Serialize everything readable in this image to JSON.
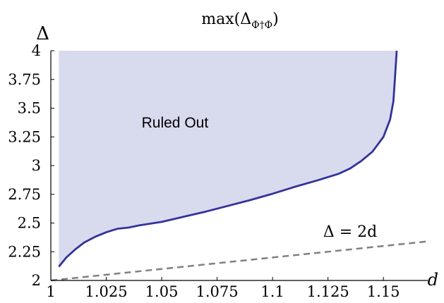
{
  "chart_data": {
    "type": "area",
    "title": "max(Δ",
    "title_sub": "Φ†Φ",
    "title_close": ")",
    "xlabel": "d",
    "ylabel": "Δ",
    "xlim": [
      1.0,
      1.17
    ],
    "ylim": [
      2.0,
      4.0
    ],
    "x_ticks": [
      1.0,
      1.025,
      1.05,
      1.075,
      1.1,
      1.125,
      1.15
    ],
    "x_tick_labels": [
      "1",
      "1.025",
      "1.05",
      "1.075",
      "1.1",
      "1.125",
      "1.15"
    ],
    "y_ticks": [
      2.0,
      2.25,
      2.5,
      2.75,
      3.0,
      3.25,
      3.5,
      3.75,
      4.0
    ],
    "y_tick_labels": [
      "2",
      "2.25",
      "2.5",
      "2.75",
      "3",
      "3.25",
      "3.5",
      "3.75",
      "4"
    ],
    "grid": false,
    "series": [
      {
        "points": [
          [
            1.0036,
            2.12
          ],
          [
            1.007,
            2.2
          ],
          [
            1.011,
            2.27
          ],
          [
            1.015,
            2.33
          ],
          [
            1.02,
            2.38
          ],
          [
            1.025,
            2.42
          ],
          [
            1.03,
            2.45
          ],
          [
            1.035,
            2.46
          ],
          [
            1.04,
            2.48
          ],
          [
            1.05,
            2.51
          ],
          [
            1.06,
            2.555
          ],
          [
            1.07,
            2.6
          ],
          [
            1.08,
            2.65
          ],
          [
            1.09,
            2.7
          ],
          [
            1.1,
            2.755
          ],
          [
            1.11,
            2.815
          ],
          [
            1.12,
            2.87
          ],
          [
            1.13,
            2.93
          ],
          [
            1.135,
            2.975
          ],
          [
            1.14,
            3.04
          ],
          [
            1.145,
            3.12
          ],
          [
            1.15,
            3.25
          ],
          [
            1.153,
            3.4
          ],
          [
            1.1545,
            3.56
          ],
          [
            1.155,
            3.7
          ],
          [
            1.1555,
            3.85
          ],
          [
            1.156,
            4.0
          ]
        ]
      },
      {
        "style": "dashed",
        "points": [
          [
            1.0,
            2.0
          ],
          [
            1.17,
            2.34
          ]
        ]
      }
    ],
    "annotations": [
      {
        "text": "Ruled Out",
        "x": 1.056,
        "y": 3.33
      },
      {
        "text": "Δ = 2d",
        "x": 1.135,
        "y": 2.38
      }
    ],
    "colors": {
      "region_fill": "#d8daee",
      "boundary_line": "#333399",
      "dashed_line": "#808080",
      "axis": "#000000",
      "text": "#000000"
    }
  }
}
